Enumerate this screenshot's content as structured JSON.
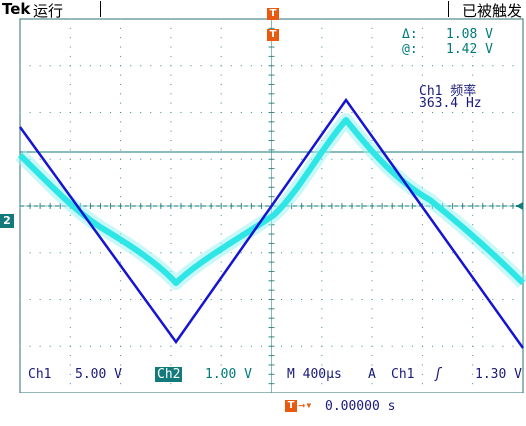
{
  "header": {
    "brand": "Tek",
    "run_status": "运行",
    "acq_state": "已被触发"
  },
  "markers": {
    "trigger_position_label": "T",
    "channel2_ground_label": "2"
  },
  "cursor_readout": {
    "delta_label": "Δ:",
    "delta_value": "1.08 V",
    "at_label": "@:",
    "at_value": "1.42 V"
  },
  "measurement": {
    "label": "Ch1 频率",
    "value": "363.4 Hz"
  },
  "status_bar": {
    "ch1_label": "Ch1",
    "ch1_scale": "5.00 V",
    "ch2_label": "Ch2",
    "ch2_scale": "1.00 V",
    "timebase": "M 400µs",
    "trigger_mode": "A",
    "trigger_source": "Ch1",
    "trigger_slope_icon": "rising-edge-icon",
    "trigger_level": "1.30 V",
    "trigger_offset_label": "T",
    "trigger_offset_value": "0.00000 s"
  },
  "colors": {
    "ch1_trace": "#1414d2",
    "ch2_trace": "#2ee6e6",
    "cursor": "#127a7a",
    "grid": "#3a8a8a",
    "trigger_marker": "#e85a10"
  }
}
